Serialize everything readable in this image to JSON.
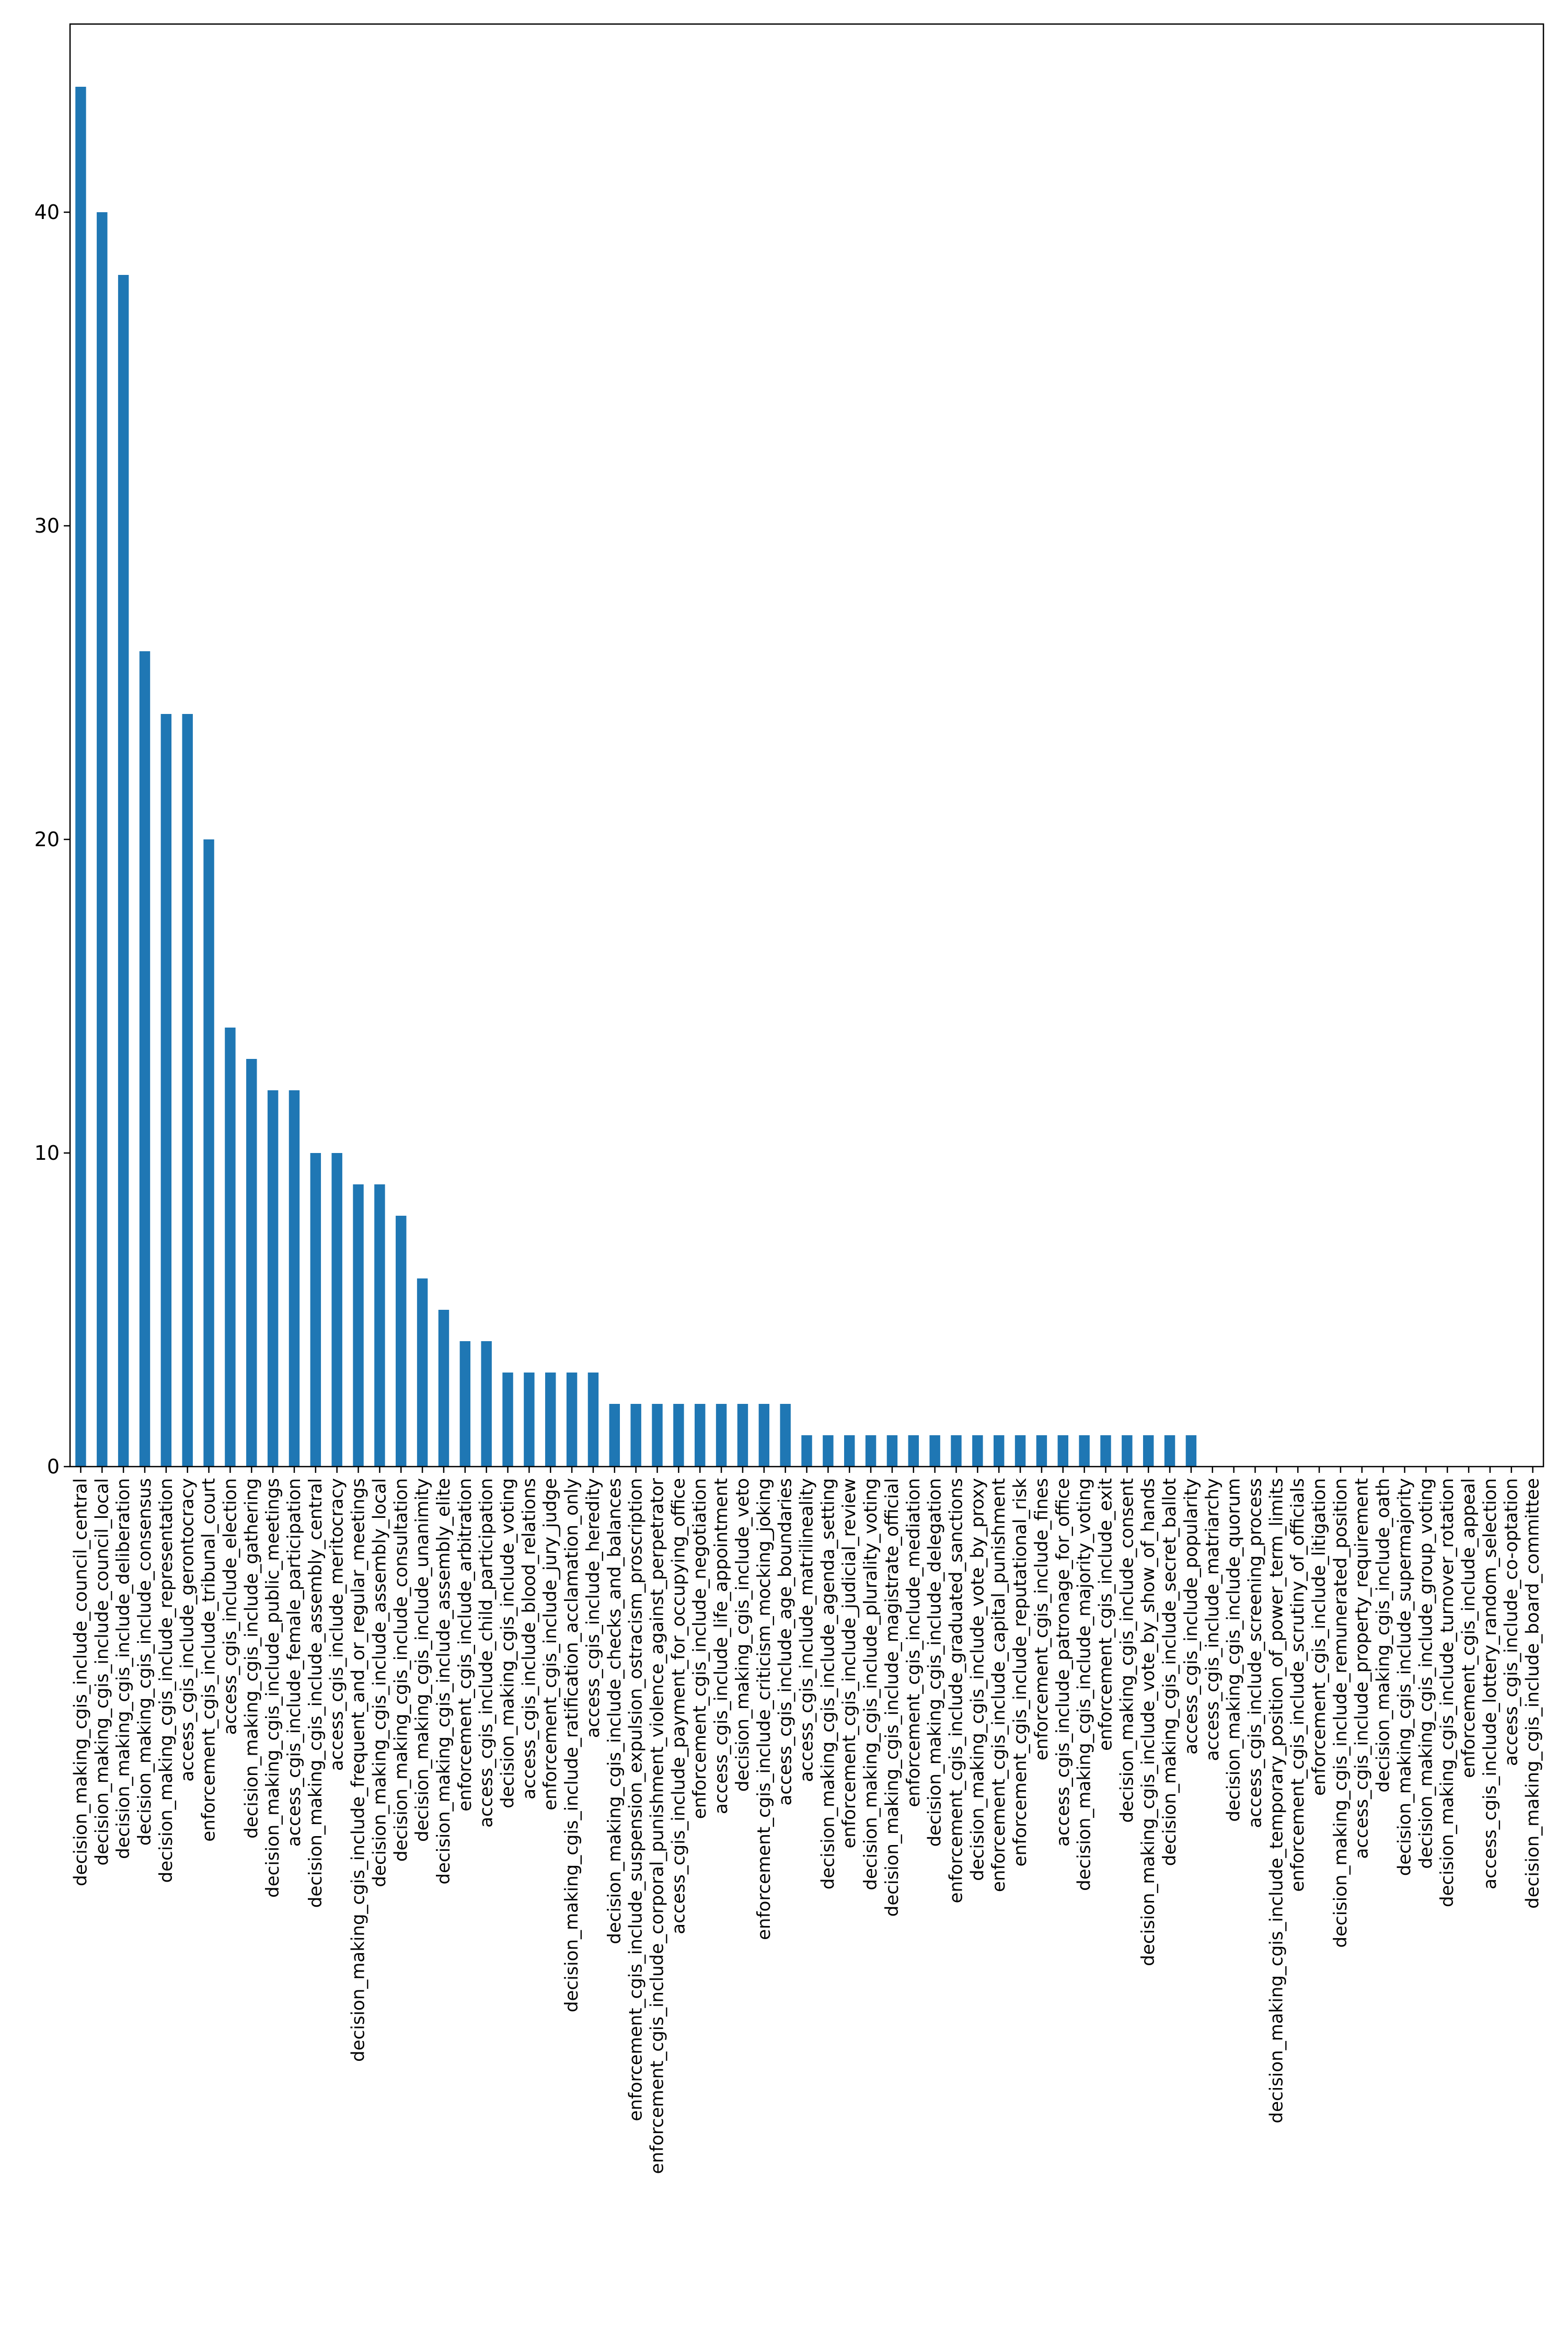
{
  "chart_data": {
    "type": "bar",
    "title": "",
    "xlabel": "",
    "ylabel": "",
    "ylim": [
      0,
      46
    ],
    "yticks": [
      0,
      10,
      20,
      30,
      40
    ],
    "grid": false,
    "bar_color": "#1f77b4",
    "categories": [
      "decision_making_cgis_include_council_central",
      "decision_making_cgis_include_council_local",
      "decision_making_cgis_include_deliberation",
      "decision_making_cgis_include_consensus",
      "decision_making_cgis_include_representation",
      "access_cgis_include_gerontocracy",
      "enforcement_cgis_include_tribunal_court",
      "access_cgis_include_election",
      "decision_making_cgis_include_gathering",
      "decision_making_cgis_include_public_meetings",
      "access_cgis_include_female_participation",
      "decision_making_cgis_include_assembly_central",
      "access_cgis_include_meritocracy",
      "decision_making_cgis_include_frequent_and_or_regular_meetings",
      "decision_making_cgis_include_assembly_local",
      "decision_making_cgis_include_consultation",
      "decision_making_cgis_include_unanimity",
      "decision_making_cgis_include_assembly_elite",
      "enforcement_cgis_include_arbitration",
      "access_cgis_include_child_participation",
      "decision_making_cgis_include_voting",
      "access_cgis_include_blood_relations",
      "enforcement_cgis_include_jury_judge",
      "decision_making_cgis_include_ratification_acclamation_only",
      "access_cgis_include_heredity",
      "decision_making_cgis_include_checks_and_balances",
      "enforcement_cgis_include_suspension_expulsion_ostracism_proscription",
      "enforcement_cgis_include_corporal_punishment_violence_against_perpetrator",
      "access_cgis_include_payment_for_occupying_office",
      "enforcement_cgis_include_negotiation",
      "access_cgis_include_life_appointment",
      "decision_making_cgis_include_veto",
      "enforcement_cgis_include_criticism_mocking_joking",
      "access_cgis_include_age_boundaries",
      "access_cgis_include_matrilineality",
      "decision_making_cgis_include_agenda_setting",
      "enforcement_cgis_include_judicial_review",
      "decision_making_cgis_include_plurality_voting",
      "decision_making_cgis_include_magistrate_official",
      "enforcement_cgis_include_mediation",
      "decision_making_cgis_include_delegation",
      "enforcement_cgis_include_graduated_sanctions",
      "decision_making_cgis_include_vote_by_proxy",
      "enforcement_cgis_include_capital_punishment",
      "enforcement_cgis_include_reputational_risk",
      "enforcement_cgis_include_fines",
      "access_cgis_include_patronage_for_office",
      "decision_making_cgis_include_majority_voting",
      "enforcement_cgis_include_exit",
      "decision_making_cgis_include_consent",
      "decision_making_cgis_include_vote_by_show_of_hands",
      "decision_making_cgis_include_secret_ballot",
      "access_cgis_include_popularity",
      "access_cgis_include_matriarchy",
      "decision_making_cgis_include_quorum",
      "access_cgis_include_screening_process",
      "decision_making_cgis_include_temporary_position_of_power_term_limits",
      "enforcement_cgis_include_scrutiny_of_officials",
      "enforcement_cgis_include_litigation",
      "decision_making_cgis_include_remunerated_position",
      "access_cgis_include_property_requirement",
      "decision_making_cgis_include_oath",
      "decision_making_cgis_include_supermajority",
      "decision_making_cgis_include_group_voting",
      "decision_making_cgis_include_turnover_rotation",
      "enforcement_cgis_include_appeal",
      "access_cgis_include_lottery_random_selection",
      "access_cgis_include_co-optation",
      "decision_making_cgis_include_board_committee"
    ],
    "values": [
      44,
      40,
      38,
      26,
      24,
      24,
      20,
      14,
      13,
      12,
      12,
      10,
      10,
      9,
      9,
      8,
      6,
      5,
      4,
      4,
      3,
      3,
      3,
      3,
      3,
      2,
      2,
      2,
      2,
      2,
      2,
      2,
      2,
      2,
      1,
      1,
      1,
      1,
      1,
      1,
      1,
      1,
      1,
      1,
      1,
      1,
      1,
      1,
      1,
      1,
      1,
      1,
      1,
      0,
      0,
      0,
      0,
      0,
      0,
      0,
      0,
      0,
      0,
      0,
      0,
      0,
      0,
      0,
      0
    ]
  }
}
